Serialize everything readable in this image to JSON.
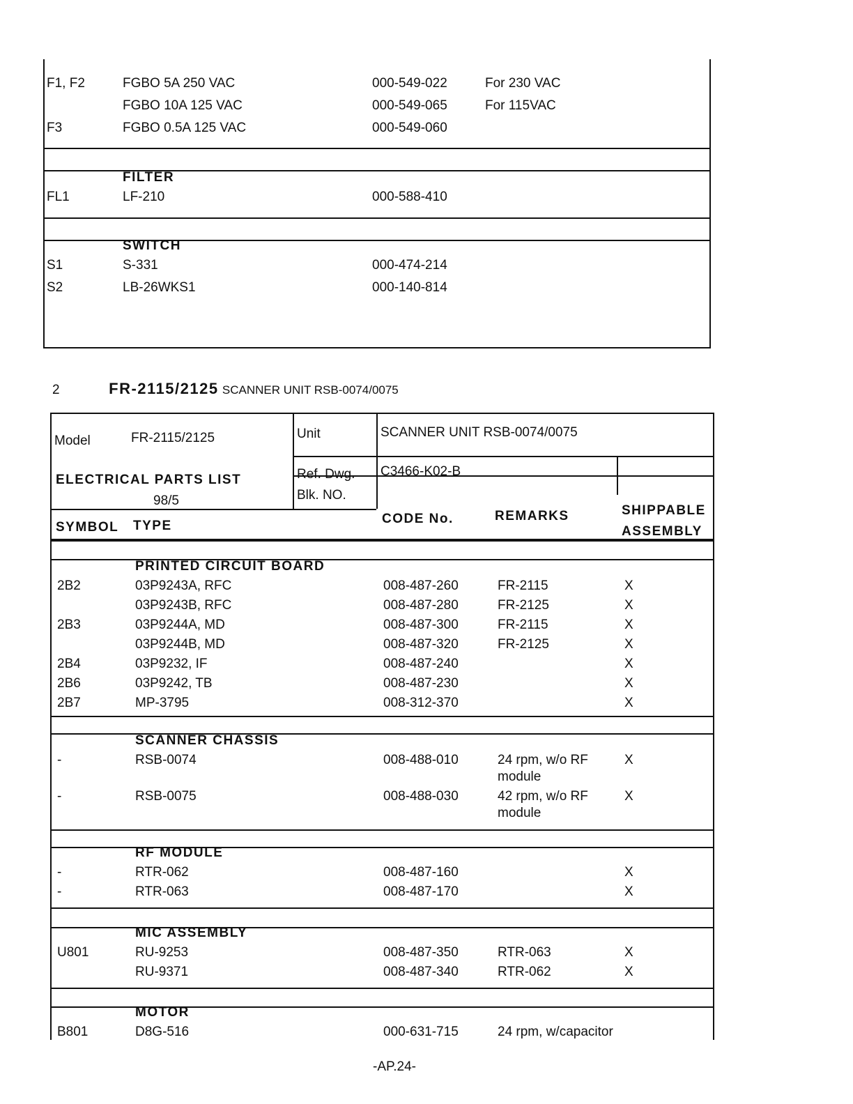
{
  "top_table": {
    "sections": [
      {
        "title": "",
        "rows": [
          {
            "symbol": "F1, F2",
            "type": "FGBO 5A 250 VAC",
            "code": "000-549-022",
            "remarks": "For 230 VAC",
            "ship": ""
          },
          {
            "symbol": "",
            "type": "FGBO 10A 125 VAC",
            "code": "000-549-065",
            "remarks": "For 115VAC",
            "ship": ""
          },
          {
            "symbol": "F3",
            "type": "FGBO 0.5A 125 VAC",
            "code": "000-549-060",
            "remarks": "",
            "ship": ""
          }
        ]
      },
      {
        "title": "FILTER",
        "rows": [
          {
            "symbol": "FL1",
            "type": "LF-210",
            "code": "000-588-410",
            "remarks": "",
            "ship": ""
          }
        ]
      },
      {
        "title": "SWITCH",
        "rows": [
          {
            "symbol": "S1",
            "type": "S-331",
            "code": "000-474-214",
            "remarks": "",
            "ship": ""
          },
          {
            "symbol": "S2",
            "type": "LB-26WKS1",
            "code": "000-140-814",
            "remarks": "",
            "ship": ""
          }
        ]
      }
    ]
  },
  "section_heading": {
    "number": "2",
    "model": "FR-2115/2125",
    "unit": "SCANNER UNIT RSB-0074/0075"
  },
  "header": {
    "model_label": "Model",
    "model_value": "FR-2115/2125",
    "list_title": "ELECTRICAL PARTS LIST",
    "date": "98/5",
    "unit_label": "Unit",
    "unit_value": "SCANNER UNIT   RSB-0074/0075",
    "ref_dwg_label": "Ref. Dwg.",
    "ref_dwg_value": "C3466-K02-B",
    "blk_label": "Blk. NO.",
    "col_symbol": "SYMBOL",
    "col_type": "TYPE",
    "col_code": "CODE No.",
    "col_remarks": "REMARKS",
    "col_ship_1": "SHIPPABLE",
    "col_ship_2": "ASSEMBLY"
  },
  "sections": [
    {
      "title": "PRINTED CIRCUIT BOARD",
      "rows": [
        {
          "symbol": "2B2",
          "type": "03P9243A, RFC",
          "code": "008-487-260",
          "remarks": "FR-2115",
          "ship": "X"
        },
        {
          "symbol": "",
          "type": "03P9243B, RFC",
          "code": "008-487-280",
          "remarks": "FR-2125",
          "ship": "X"
        },
        {
          "symbol": "2B3",
          "type": "03P9244A, MD",
          "code": "008-487-300",
          "remarks": "FR-2115",
          "ship": "X"
        },
        {
          "symbol": "",
          "type": "03P9244B, MD",
          "code": "008-487-320",
          "remarks": "FR-2125",
          "ship": "X"
        },
        {
          "symbol": "2B4",
          "type": "03P9232,   IF",
          "code": "008-487-240",
          "remarks": "",
          "ship": "X"
        },
        {
          "symbol": "2B6",
          "type": "03P9242, TB",
          "code": "008-487-230",
          "remarks": "",
          "ship": "X"
        },
        {
          "symbol": "2B7",
          "type": "MP-3795",
          "code": "008-312-370",
          "remarks": "",
          "ship": "X"
        }
      ]
    },
    {
      "title": "SCANNER CHASSIS",
      "rows": [
        {
          "symbol": "-",
          "type": "RSB-0074",
          "code": "008-488-010",
          "remarks": "24 rpm, w/o RF",
          "remarks2": "module",
          "ship": "X"
        },
        {
          "symbol": "-",
          "type": "RSB-0075",
          "code": "008-488-030",
          "remarks": "42 rpm, w/o RF",
          "remarks2": "module",
          "ship": "X"
        }
      ]
    },
    {
      "title": "RF MODULE",
      "rows": [
        {
          "symbol": "-",
          "type": "RTR-062",
          "code": "008-487-160",
          "remarks": "",
          "ship": "X"
        },
        {
          "symbol": "-",
          "type": "RTR-063",
          "code": "008-487-170",
          "remarks": "",
          "ship": "X"
        }
      ]
    },
    {
      "title": "MIC ASSEMBLY",
      "rows": [
        {
          "symbol": "U801",
          "type": "RU-9253",
          "code": "008-487-350",
          "remarks": "RTR-063",
          "ship": "X"
        },
        {
          "symbol": "",
          "type": "RU-9371",
          "code": "008-487-340",
          "remarks": "RTR-062",
          "ship": "X"
        }
      ]
    },
    {
      "title": "MOTOR",
      "rows": [
        {
          "symbol": "B801",
          "type": "D8G-516",
          "code": "000-631-715",
          "remarks": "24 rpm, w/capacitor",
          "ship": ""
        }
      ]
    }
  ],
  "footer": {
    "page": "-AP.24-"
  }
}
